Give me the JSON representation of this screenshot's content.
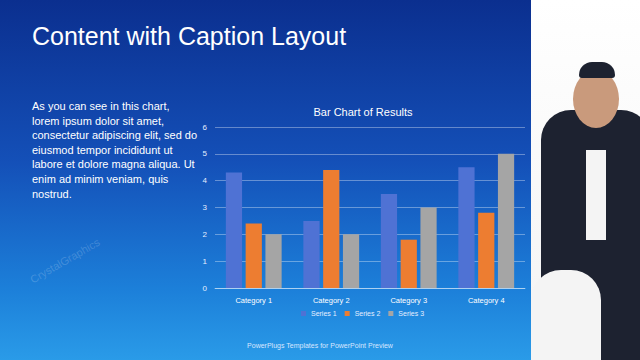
{
  "slide_title": "Content with Caption Layout",
  "caption": "As you can see in this chart, lorem ipsum dolor sit amet, consectetur adipiscing elit, sed do eiusmod tempor incididunt ut labore et dolore magna aliqua. Ut enim ad minim veniam, quis nostrud.",
  "footer": "PowerPlugs Templates for PowerPoint Preview",
  "watermark": "CrystalGraphics",
  "chart_data": {
    "type": "bar",
    "title": "Bar Chart of Results",
    "categories": [
      "Category 1",
      "Category 2",
      "Category 3",
      "Category 4"
    ],
    "series": [
      {
        "name": "Series 1",
        "color": "#4f72d4",
        "values": [
          4.3,
          2.5,
          3.5,
          4.5
        ]
      },
      {
        "name": "Series 2",
        "color": "#ed7d31",
        "values": [
          2.4,
          4.4,
          1.8,
          2.8
        ]
      },
      {
        "name": "Series 3",
        "color": "#a5a5a5",
        "values": [
          2,
          2,
          3,
          5
        ]
      }
    ],
    "ylim": [
      0,
      6
    ],
    "yticks": [
      0,
      1,
      2,
      3,
      4,
      5,
      6
    ],
    "grid": true,
    "legend": "bottom"
  }
}
